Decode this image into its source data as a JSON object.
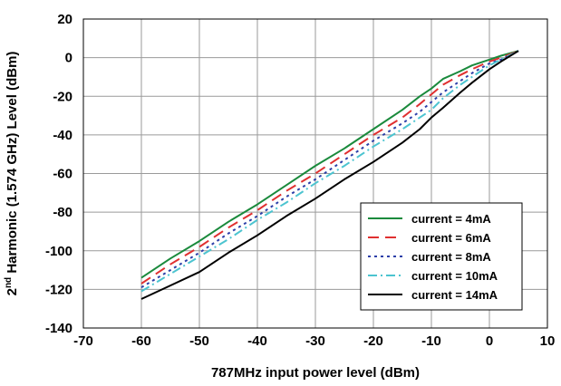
{
  "chart_data": {
    "type": "line",
    "xlabel": "787MHz input power level (dBm)",
    "ylabel": {
      "prefix": "2",
      "superscript": "nd",
      "rest": " Harmonic (1.574 GHz) Level (dBm)"
    },
    "xlim": [
      -70,
      10
    ],
    "ylim": [
      -140,
      20
    ],
    "xticks": [
      -70,
      -60,
      -50,
      -40,
      -30,
      -20,
      -10,
      0,
      10
    ],
    "yticks": [
      20,
      0,
      -20,
      -40,
      -60,
      -80,
      -100,
      -120,
      -140
    ],
    "grid": true,
    "legend_position": "bottom-right",
    "series": [
      {
        "name": "current = 4mA",
        "color": "#1a8a3c",
        "dash": "solid",
        "x": [
          -60,
          -55,
          -50,
          -45,
          -40,
          -35,
          -30,
          -25,
          -20,
          -15,
          -12,
          -10,
          -8,
          -5,
          -3,
          0,
          2,
          5
        ],
        "y": [
          -114,
          -104,
          -95,
          -85,
          -76,
          -66,
          -56,
          -47,
          -37,
          -27,
          -20,
          -16,
          -11,
          -7,
          -4,
          -1,
          1,
          3.5
        ]
      },
      {
        "name": "current = 6mA",
        "color": "#e03030",
        "dash": "long-dash",
        "x": [
          -60,
          -55,
          -50,
          -45,
          -40,
          -35,
          -30,
          -25,
          -20,
          -15,
          -12,
          -10,
          -8,
          -5,
          -3,
          0,
          2,
          5
        ],
        "y": [
          -117,
          -107,
          -98,
          -88,
          -79,
          -69,
          -60,
          -50,
          -40,
          -31,
          -24,
          -19,
          -14,
          -9,
          -6,
          -2,
          0,
          3.5
        ]
      },
      {
        "name": "current = 8mA",
        "color": "#2c3fa8",
        "dash": "dot",
        "x": [
          -60,
          -55,
          -50,
          -45,
          -40,
          -35,
          -30,
          -25,
          -20,
          -15,
          -12,
          -10,
          -8,
          -5,
          -3,
          0,
          2,
          5
        ],
        "y": [
          -119,
          -110,
          -101,
          -91,
          -82,
          -72,
          -63,
          -53,
          -43,
          -34,
          -28,
          -23,
          -18,
          -12,
          -8,
          -3,
          -1,
          3.5
        ]
      },
      {
        "name": "current = 10mA",
        "color": "#4cc4d0",
        "dash": "dash-dot",
        "x": [
          -60,
          -55,
          -50,
          -45,
          -40,
          -35,
          -30,
          -25,
          -20,
          -15,
          -12,
          -10,
          -8,
          -5,
          -3,
          0,
          2,
          5
        ],
        "y": [
          -121,
          -112,
          -103,
          -94,
          -84,
          -75,
          -65,
          -56,
          -46,
          -37,
          -31,
          -27,
          -21,
          -14,
          -10,
          -4,
          -1,
          3.5
        ]
      },
      {
        "name": "current = 14mA",
        "color": "#000000",
        "dash": "solid",
        "x": [
          -60,
          -55,
          -50,
          -45,
          -40,
          -35,
          -30,
          -25,
          -20,
          -15,
          -12,
          -10,
          -8,
          -5,
          -3,
          0,
          2,
          5
        ],
        "y": [
          -125,
          -118,
          -111,
          -101,
          -92,
          -82,
          -73,
          -63,
          -54,
          -44,
          -37,
          -31,
          -26,
          -18,
          -13,
          -6,
          -2,
          3.5
        ]
      }
    ]
  }
}
